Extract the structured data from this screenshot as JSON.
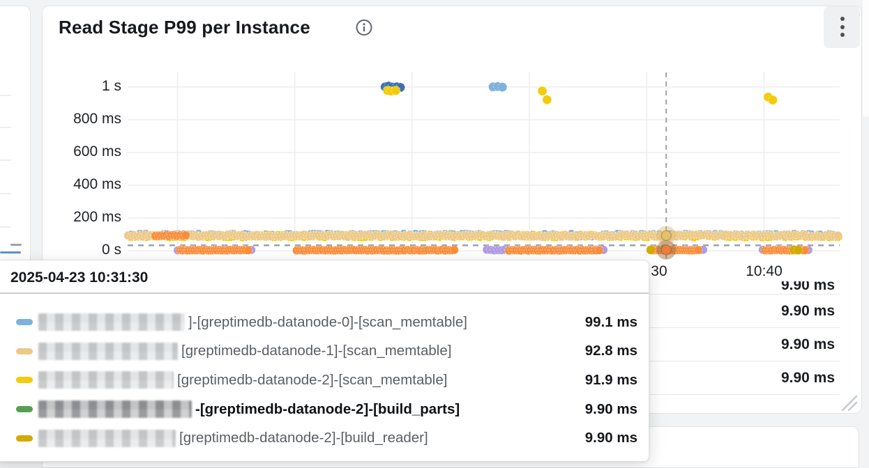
{
  "panel": {
    "title": "Read Stage P99 per Instance"
  },
  "icons": {
    "info": "info-circle-icon",
    "menu": "kebab-vertical-icon",
    "resize": "resize-handle-icon"
  },
  "chart_data": {
    "type": "scatter",
    "title": "Read Stage P99 per Instance",
    "unit": "ms",
    "grid": true,
    "y_axis": {
      "tick_labels": [
        "1 s",
        "800 ms",
        "600 ms",
        "400 ms",
        "200 ms",
        "0 s"
      ],
      "tick_values_ms": [
        1000,
        800,
        600,
        400,
        200,
        0
      ],
      "range_ms": [
        0,
        1100
      ]
    },
    "x_axis": {
      "ticks": [
        {
          "t_min": 0,
          "label": "30",
          "align": "start"
        },
        {
          "t_min": 10,
          "label": "10:40",
          "align": "middle"
        }
      ],
      "minutes_per_gridline": 10
    },
    "crosshair": {
      "t_min": 1.66,
      "ms": 34,
      "time": "2025-04-23 10:31:30"
    },
    "highlighted_points": [
      {
        "t_min": 1.66,
        "ms": 93.5,
        "fill": "#E7C06A",
        "halo": "rgba(218,186,118,0.45)"
      },
      {
        "t_min": 1.66,
        "ms": 6,
        "fill": "#ED7D3C",
        "halo": "rgba(152,103,57,0.45)"
      }
    ],
    "series": [
      {
        "label": "",
        "color": "#E79ADF",
        "band_ms": [
          88,
          100
        ],
        "segments": [
          [
            -27.5,
            -13.2,
            45
          ]
        ],
        "outliers": [
          [
            -5.3,
            94
          ],
          [
            2.4,
            96
          ],
          [
            3.0,
            93
          ],
          [
            3.7,
            95
          ]
        ]
      },
      {
        "label": "",
        "color": "#49B4C6",
        "band_ms": [
          90,
          103
        ],
        "segments": [
          [
            -29.6,
            -12.9,
            18
          ]
        ],
        "outliers": []
      },
      {
        "label": "]-[greptimedb-datanode-0]-[scan_memtable]",
        "redacted_prefix": true,
        "color": "#7EB2DD",
        "band_ms": [
          88,
          104
        ],
        "segments": [
          [
            -44.2,
            16.3,
            15
          ]
        ],
        "outliers": [
          [
            -13.1,
            1000
          ],
          [
            -12.7,
            1002
          ],
          [
            -12.3,
            999
          ]
        ]
      },
      {
        "label": "",
        "color": "#3D6FB4",
        "band_ms": null,
        "segments": [],
        "outliers": [
          [
            -22.3,
            1000
          ],
          [
            -22.0,
            1005
          ],
          [
            -21.7,
            999
          ],
          [
            -21.3,
            1001
          ],
          [
            -21.0,
            997
          ]
        ]
      },
      {
        "label": "[greptimedb-datanode-2]-[scan_memtable]",
        "redacted_prefix": true,
        "color": "#F2CC0C",
        "band_ms": [
          83,
          97
        ],
        "segments": [
          [
            -44.2,
            16.3,
            15
          ]
        ],
        "outliers": [
          [
            -22.1,
            978
          ],
          [
            -21.8,
            975
          ],
          [
            -21.4,
            978
          ],
          [
            -8.9,
            975
          ],
          [
            -8.5,
            922
          ],
          [
            10.35,
            938
          ],
          [
            10.75,
            920
          ]
        ]
      },
      {
        "label": "[greptimedb-datanode-1]-[scan_memtable]",
        "redacted_prefix": true,
        "color": "#EDC988",
        "band_ms": [
          86,
          100
        ],
        "segments": [
          [
            -44.2,
            16.3,
            15
          ]
        ],
        "outliers": []
      },
      {
        "label": "",
        "color": "#AF9CE3",
        "band_ms": [
          3,
          8
        ],
        "segments": [
          [
            -40.0,
            -33.6,
            20
          ],
          [
            -13.6,
            -3.6,
            18
          ],
          [
            0.3,
            5.0,
            18
          ],
          [
            9.9,
            13.9,
            18
          ]
        ],
        "outliers": []
      },
      {
        "label": "",
        "color": "#F98E3A",
        "band_ms": [
          2,
          6
        ],
        "segments": [
          [
            -39.8,
            -33.9,
            12
          ],
          [
            -29.8,
            -16.4,
            12
          ],
          [
            -11.7,
            -4.1,
            12
          ],
          [
            0.6,
            4.5,
            12
          ],
          [
            10.1,
            13.5,
            12
          ]
        ],
        "outliers": []
      },
      {
        "label": "",
        "color": "#F98E3A",
        "band_ms": [
          88,
          96
        ],
        "segments": [
          [
            -41.9,
            -39.3,
            14
          ]
        ],
        "outliers": []
      },
      {
        "label": "[greptimedb-datanode-2]-[build_reader]",
        "redacted_prefix": true,
        "color": "#D4A902",
        "band_ms": null,
        "segments": [],
        "outliers": [
          [
            0.35,
            6
          ],
          [
            12.55,
            6
          ],
          [
            12.9,
            5
          ]
        ]
      },
      {
        "label": "-[greptimedb-datanode-2]-[build_parts]",
        "redacted_prefix": true,
        "color": "#53A050",
        "band_ms": null,
        "segments": [],
        "outliers": [
          [
            1.55,
            9.9
          ]
        ]
      }
    ]
  },
  "legend_table": {
    "rows": [
      {
        "value": "9.90 ms",
        "top_clipped": true
      },
      {
        "value": "9.90 ms"
      },
      {
        "value": "9.90 ms"
      },
      {
        "value": "9.90 ms"
      }
    ]
  },
  "tooltip": {
    "timestamp": "2025-04-23 10:31:30",
    "rows": [
      {
        "marker_color": "#7EB2DD",
        "redacted_prefix": true,
        "series_suffix": "]-[greptimedb-datanode-0]-[scan_memtable]",
        "value": "99.1 ms",
        "bold": false
      },
      {
        "marker_color": "#EDC988",
        "redacted_prefix": true,
        "series_suffix": "[greptimedb-datanode-1]-[scan_memtable]",
        "value": "92.8 ms",
        "bold": false
      },
      {
        "marker_color": "#F2CC0C",
        "redacted_prefix": true,
        "series_suffix": "[greptimedb-datanode-2]-[scan_memtable]",
        "value": "91.9 ms",
        "bold": false
      },
      {
        "marker_color": "#53A050",
        "redacted_prefix": true,
        "series_suffix": "-[greptimedb-datanode-2]-[build_parts]",
        "value": "9.90 ms",
        "bold": true
      },
      {
        "marker_color": "#D4A902",
        "redacted_prefix": true,
        "series_suffix": "[greptimedb-datanode-2]-[build_reader]",
        "value": "9.90 ms",
        "bold": false
      }
    ]
  }
}
